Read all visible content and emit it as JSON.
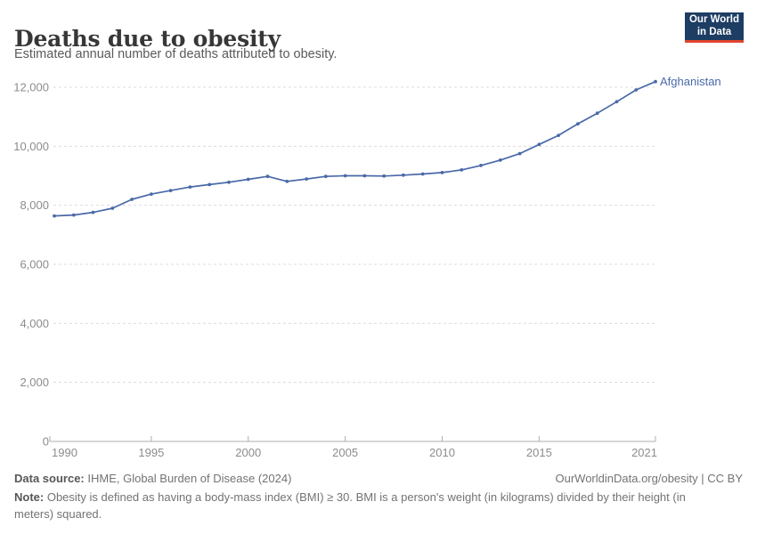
{
  "header": {
    "title": "Deaths due to obesity",
    "subtitle": "Estimated annual number of deaths attributed to obesity.",
    "logo": {
      "line1": "Our World",
      "line2": "in Data",
      "bg_color": "#1d3d63",
      "accent_color": "#e0422d"
    }
  },
  "chart_data": {
    "type": "line",
    "title": "Deaths due to obesity",
    "subtitle": "Estimated annual number of deaths attributed to obesity.",
    "entity_label": "Afghanistan",
    "x": [
      1990,
      1991,
      1992,
      1993,
      1994,
      1995,
      1996,
      1997,
      1998,
      1999,
      2000,
      2001,
      2002,
      2003,
      2004,
      2005,
      2006,
      2007,
      2008,
      2009,
      2010,
      2011,
      2012,
      2013,
      2014,
      2015,
      2016,
      2017,
      2018,
      2019,
      2020,
      2021
    ],
    "series": [
      {
        "name": "Afghanistan",
        "values": [
          7640,
          7670,
          7760,
          7900,
          8200,
          8380,
          8500,
          8620,
          8700,
          8780,
          8880,
          8980,
          8810,
          8890,
          8980,
          9000,
          9000,
          8990,
          9020,
          9060,
          9110,
          9200,
          9350,
          9530,
          9750,
          10060,
          10370,
          10760,
          11120,
          11510,
          11910,
          12190
        ]
      }
    ],
    "xlim": [
      1990,
      2021
    ],
    "ylim": [
      0,
      12400
    ],
    "x_ticks": [
      1990,
      1995,
      2000,
      2005,
      2010,
      2015,
      2021
    ],
    "y_ticks": [
      0,
      2000,
      4000,
      6000,
      8000,
      10000,
      12000
    ],
    "grid": "horizontal dashed",
    "legend_position": "end-of-line label",
    "line_color": "#4a69a8",
    "label_color": "#4a69a8",
    "grid_color": "#dcdcdc",
    "axis_color": "#aeaeae",
    "tick_label_color": "#8c8c8c"
  },
  "footer": {
    "source_label": "Data source:",
    "source_text": " IHME, Global Burden of Disease (2024)",
    "link_text": "OurWorldinData.org/obesity | CC BY",
    "note_label": "Note:",
    "note_text": " Obesity is defined as having a body-mass index (BMI) ≥ 30. BMI is a person's weight (in kilograms) divided by their height (in meters) squared."
  }
}
